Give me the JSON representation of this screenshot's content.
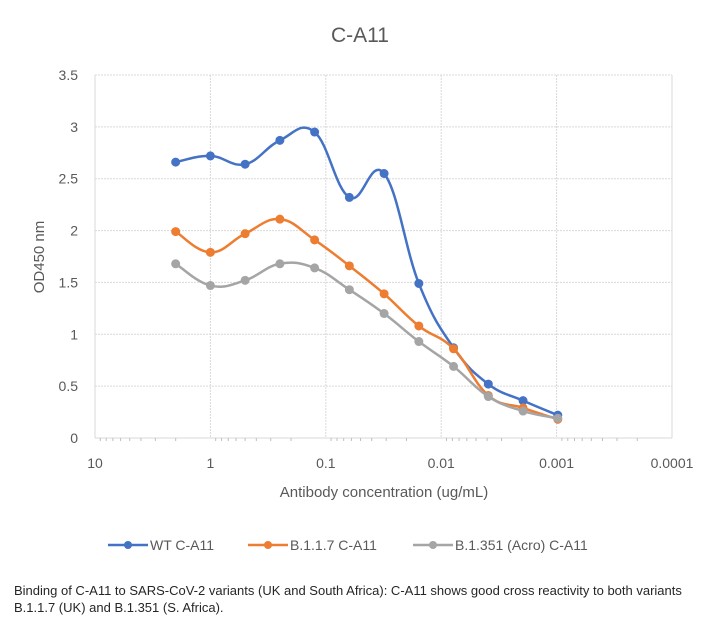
{
  "chart_data": {
    "type": "line",
    "title": "C-A11",
    "xlabel": "Antibody concentration (ug/mL)",
    "ylabel": "OD450 nm",
    "xscale": "log",
    "x_reversed": true,
    "xlim": [
      10,
      0.0001
    ],
    "ylim": [
      0,
      3.5
    ],
    "x_tick_labels": [
      "10",
      "1",
      "0.1",
      "0.01",
      "0.001",
      "0.0001"
    ],
    "x_ticks": [
      10,
      1,
      0.1,
      0.01,
      0.001,
      0.0001
    ],
    "y_tick_labels": [
      "0",
      "0.5",
      "1",
      "1.5",
      "2",
      "2.5",
      "3",
      "3.5"
    ],
    "y_ticks": [
      0,
      0.5,
      1,
      1.5,
      2,
      2.5,
      3,
      3.5
    ],
    "grid": true,
    "legend_position": "bottom",
    "x": [
      2,
      1,
      0.5,
      0.25,
      0.125,
      0.0625,
      0.03125,
      0.015625,
      0.0078125,
      0.00390625,
      0.001953125,
      0.0009765625
    ],
    "series": [
      {
        "name": "WT C-A11",
        "color": "#4472C4",
        "values": [
          2.66,
          2.72,
          2.64,
          2.87,
          2.95,
          2.32,
          2.55,
          1.49,
          0.87,
          0.52,
          0.36,
          0.22
        ]
      },
      {
        "name": "B.1.1.7 C-A11",
        "color": "#ED7D31",
        "values": [
          1.99,
          1.79,
          1.97,
          2.11,
          1.91,
          1.66,
          1.39,
          1.08,
          0.86,
          0.41,
          0.29,
          0.18
        ]
      },
      {
        "name": "B.1.351 (Acro) C-A11",
        "color": "#A5A5A5",
        "values": [
          1.68,
          1.47,
          1.52,
          1.68,
          1.64,
          1.43,
          1.2,
          0.93,
          0.69,
          0.4,
          0.26,
          0.19
        ]
      }
    ]
  },
  "caption": "Binding of C-A11 to SARS-CoV-2 variants (UK and South Africa): C-A11 shows good cross reactivity to both variants B.1.1.7 (UK) and B.1.351 (S. Africa)."
}
